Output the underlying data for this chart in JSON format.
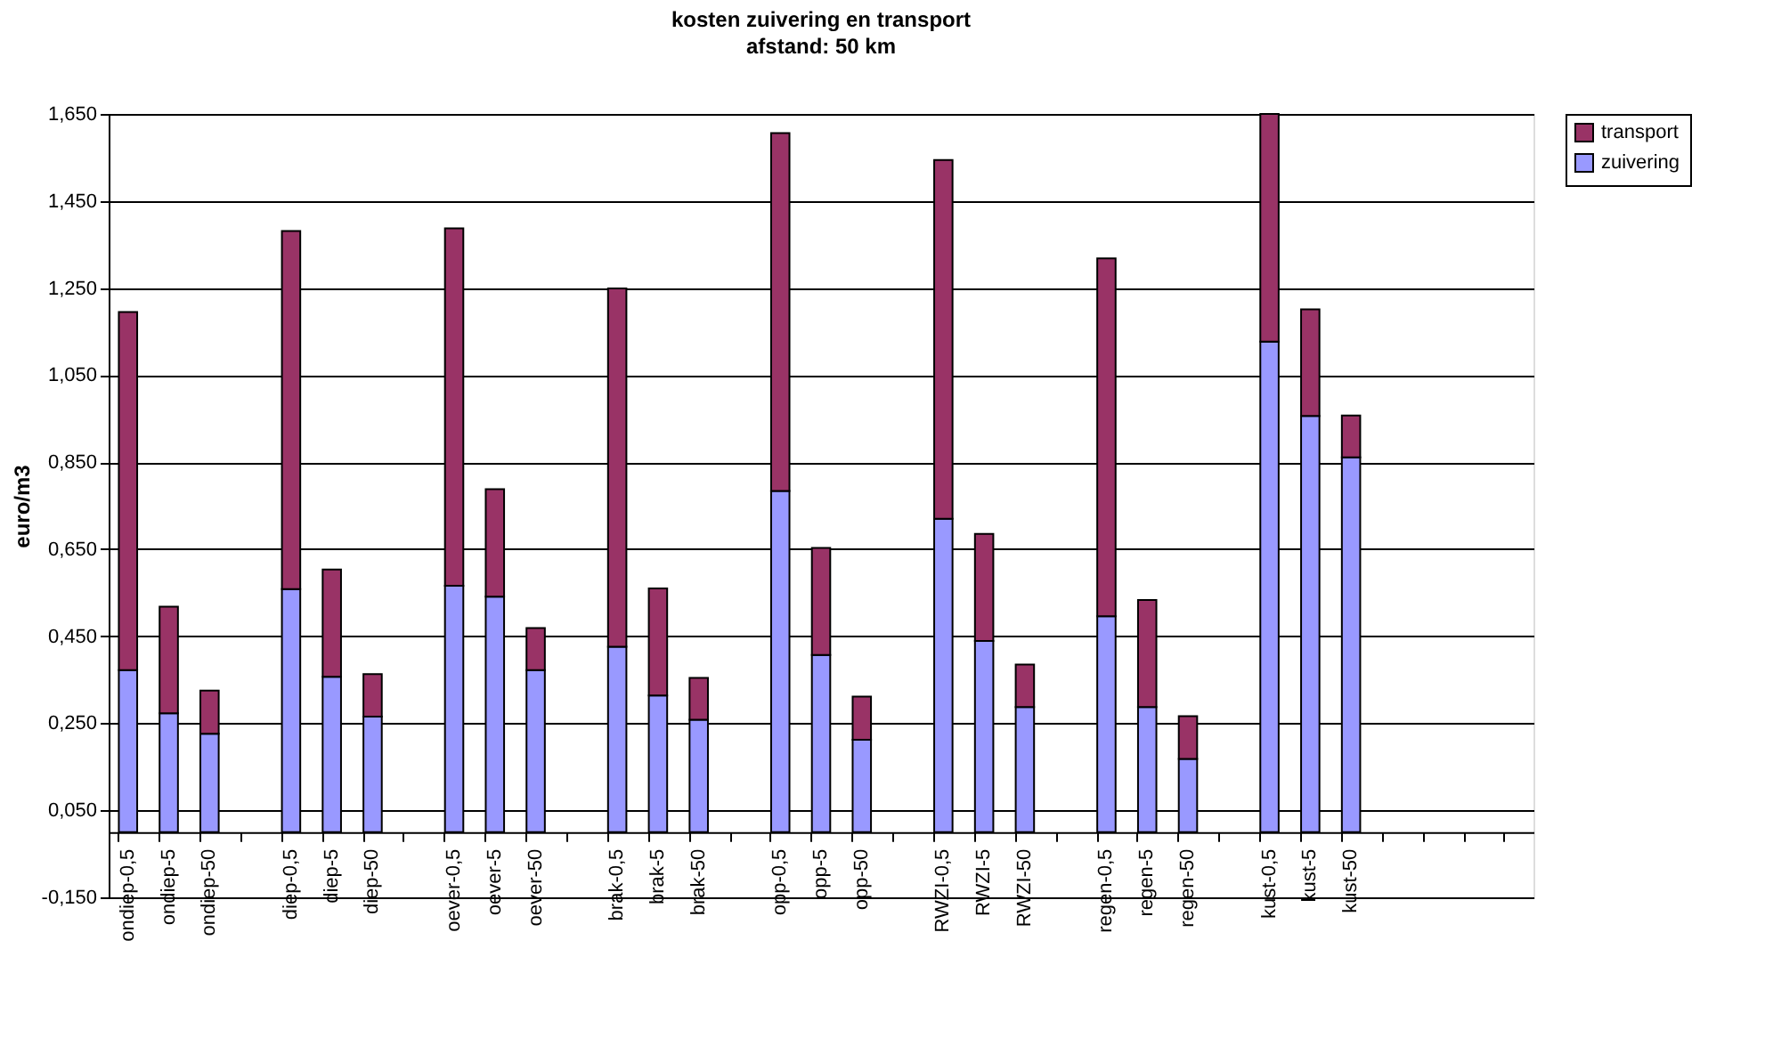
{
  "chart_data": {
    "type": "bar",
    "stacked": true,
    "title": "kosten zuivering en transport",
    "subtitle": "afstand: 50 km",
    "ylabel": "euro/m3",
    "categories": [
      "ondiep-0,5",
      "ondiep-5",
      "ondiep-50",
      null,
      "diep-0,5",
      "diep-5",
      "diep-50",
      null,
      "oever-0,5",
      "oever-5",
      "oever-50",
      null,
      "brak-0,5",
      "brak-5",
      "brak-50",
      null,
      "opp-0,5",
      "opp-5",
      "opp-50",
      null,
      "RWZI-0,5",
      "RWZI-5",
      "RWZI-50",
      null,
      "regen-0,5",
      "regen-5",
      "regen-50",
      null,
      "kust-0,5",
      "kust-5",
      "kust-50",
      null,
      null,
      null,
      null
    ],
    "series": [
      {
        "name": "zuivering",
        "color": "#9999ff",
        "values": [
          0.372,
          0.273,
          0.226,
          null,
          0.558,
          0.357,
          0.265,
          null,
          0.566,
          0.541,
          0.372,
          null,
          0.426,
          0.314,
          0.258,
          null,
          0.784,
          0.407,
          0.212,
          null,
          0.72,
          0.439,
          0.287,
          null,
          0.496,
          0.287,
          0.168,
          null,
          1.127,
          0.956,
          0.861,
          null,
          null,
          null,
          null
        ]
      },
      {
        "name": "transport",
        "color": "#993366",
        "values": [
          0.823,
          0.245,
          0.099,
          null,
          0.823,
          0.246,
          0.098,
          null,
          0.821,
          0.247,
          0.097,
          null,
          0.823,
          0.246,
          0.096,
          null,
          0.822,
          0.246,
          0.099,
          null,
          0.824,
          0.246,
          0.098,
          null,
          0.822,
          0.246,
          0.098,
          null,
          0.523,
          0.245,
          0.096,
          null,
          null,
          null,
          null
        ]
      }
    ],
    "ylim": [
      -0.15,
      1.65
    ],
    "yticks": [
      {
        "value": -0.15,
        "label": "-0,150"
      },
      {
        "value": 0.05,
        "label": "0,050"
      },
      {
        "value": 0.25,
        "label": "0,250"
      },
      {
        "value": 0.45,
        "label": "0,450"
      },
      {
        "value": 0.65,
        "label": "0,650"
      },
      {
        "value": 0.85,
        "label": "0,850"
      },
      {
        "value": 1.05,
        "label": "1,050"
      },
      {
        "value": 1.25,
        "label": "1,250"
      },
      {
        "value": 1.45,
        "label": "1,450"
      },
      {
        "value": 1.65,
        "label": "1,650"
      }
    ],
    "grid": "y",
    "legend": "right"
  }
}
